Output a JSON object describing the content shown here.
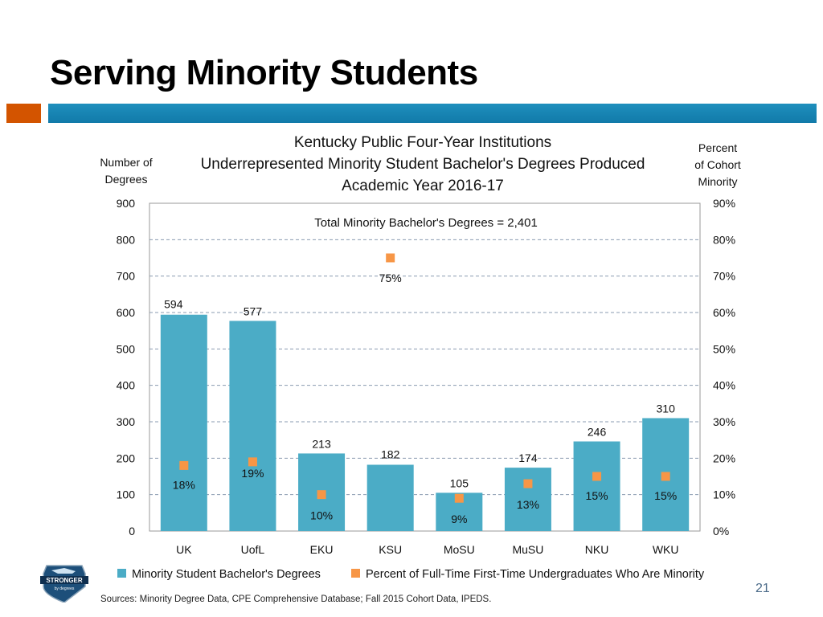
{
  "slide": {
    "title": "Serving Minority Students",
    "page_number": "21",
    "sources": "Sources:  Minority  Degree Data, CPE Comprehensive  Database; Fall 2015 Cohort Data, IPEDS.",
    "logo_text": "STRONGER",
    "logo_subtext": "by degrees",
    "colors": {
      "accent": "#d35400",
      "bar_band": "#1a86b5",
      "bars": "#4bacc6",
      "markers": "#f79646"
    }
  },
  "chart_data": {
    "type": "bar",
    "title_lines": [
      "Kentucky Public Four-Year Institutions",
      "Underrepresented Minority Student Bachelor's Degrees Produced",
      "Academic Year 2016-17"
    ],
    "annotation": "Total Minority Bachelor's  Degrees   =  2,401",
    "ylabel_left_lines": [
      "Number of",
      "Degrees"
    ],
    "ylabel_right_lines": [
      "Percent",
      "of Cohort",
      "Minority"
    ],
    "categories": [
      "UK",
      "UofL",
      "EKU",
      "KSU",
      "MoSU",
      "MuSU",
      "NKU",
      "WKU"
    ],
    "y_left_ticks": [
      "0",
      "100",
      "200",
      "300",
      "400",
      "500",
      "600",
      "700",
      "800",
      "900"
    ],
    "y_right_ticks": [
      "0%",
      "10%",
      "20%",
      "30%",
      "40%",
      "50%",
      "60%",
      "70%",
      "80%",
      "90%"
    ],
    "ylim_left": [
      0,
      900
    ],
    "ylim_right": [
      0,
      90
    ],
    "grid": true,
    "legend_position": "bottom",
    "series": [
      {
        "name": "Minority Student Bachelor's Degrees",
        "kind": "bar",
        "axis": "left",
        "values": [
          594,
          577,
          213,
          182,
          105,
          174,
          246,
          310
        ],
        "labels": [
          "594",
          "577",
          "213",
          "182",
          "105",
          "174",
          "246",
          "310"
        ]
      },
      {
        "name": "Percent of Full-Time First-Time Undergraduates Who Are Minority",
        "kind": "marker",
        "axis": "right",
        "values": [
          18,
          19,
          10,
          75,
          9,
          13,
          15,
          15
        ],
        "labels": [
          "18%",
          "19%",
          "10%",
          "75%",
          "9%",
          "13%",
          "15%",
          "15%"
        ]
      }
    ]
  }
}
